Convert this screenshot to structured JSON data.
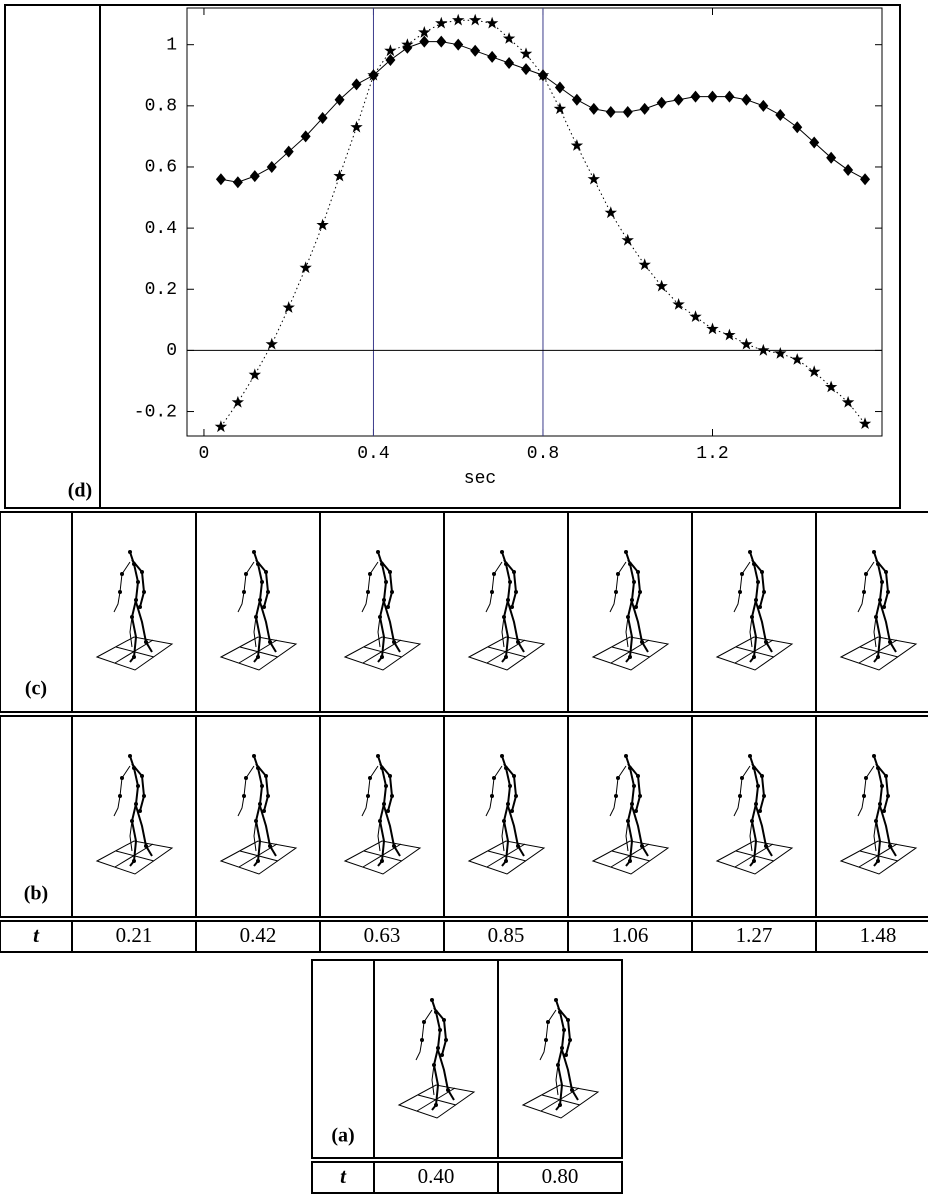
{
  "chart_data": {
    "type": "line",
    "label": "(d)",
    "xlabel": "sec",
    "x": [
      0.04,
      0.08,
      0.12,
      0.16,
      0.2,
      0.24,
      0.28,
      0.32,
      0.36,
      0.4,
      0.44,
      0.48,
      0.52,
      0.56,
      0.6,
      0.64,
      0.68,
      0.72,
      0.76,
      0.8,
      0.84,
      0.88,
      0.92,
      0.96,
      1.0,
      1.04,
      1.08,
      1.12,
      1.16,
      1.2,
      1.24,
      1.28,
      1.32,
      1.36,
      1.4,
      1.44,
      1.48,
      1.52,
      1.56
    ],
    "series": [
      {
        "marker": "diamond",
        "line_style": "solid",
        "color": "#000000",
        "values": [
          0.56,
          0.55,
          0.57,
          0.6,
          0.65,
          0.7,
          0.76,
          0.82,
          0.87,
          0.9,
          0.95,
          0.99,
          1.01,
          1.01,
          1.0,
          0.98,
          0.96,
          0.94,
          0.92,
          0.9,
          0.86,
          0.82,
          0.79,
          0.78,
          0.78,
          0.79,
          0.81,
          0.82,
          0.83,
          0.83,
          0.83,
          0.82,
          0.8,
          0.77,
          0.73,
          0.68,
          0.63,
          0.59,
          0.56
        ]
      },
      {
        "marker": "star",
        "line_style": "dotted",
        "color": "#000000",
        "values": [
          -0.25,
          -0.17,
          -0.08,
          0.02,
          0.14,
          0.27,
          0.41,
          0.57,
          0.73,
          0.9,
          0.98,
          1.0,
          1.04,
          1.07,
          1.08,
          1.08,
          1.07,
          1.02,
          0.97,
          0.9,
          0.79,
          0.67,
          0.56,
          0.45,
          0.36,
          0.28,
          0.21,
          0.15,
          0.11,
          0.07,
          0.05,
          0.02,
          0.0,
          -0.01,
          -0.03,
          -0.07,
          -0.12,
          -0.17,
          -0.24
        ]
      }
    ],
    "xlim": [
      -0.04,
      1.6
    ],
    "ylim": [
      -0.28,
      1.12
    ],
    "xticks": [
      0,
      0.4,
      0.8,
      1.2
    ],
    "yticks": [
      -0.2,
      0,
      0.2,
      0.4,
      0.6,
      0.8,
      1
    ],
    "vlines": [
      0.4,
      0.8
    ],
    "vline_color": "#3c3c8c",
    "hlines": [
      0
    ]
  },
  "figure": {
    "panel_c": {
      "label": "(c)"
    },
    "panel_b": {
      "label": "(b)",
      "t_header": "t",
      "t_values": [
        "0.21",
        "0.42",
        "0.63",
        "0.85",
        "1.06",
        "1.27",
        "1.48"
      ]
    },
    "panel_a": {
      "label": "(a)",
      "t_header": "t",
      "t_values": [
        "0.40",
        "0.80"
      ]
    }
  }
}
